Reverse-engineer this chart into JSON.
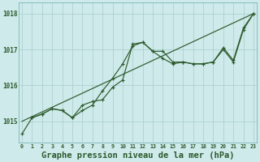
{
  "background_color": "#ceeaea",
  "grid_color": "#a8cccc",
  "line_color": "#2d5a2d",
  "xlabel": "Graphe pression niveau de la mer (hPa)",
  "xlabel_fontsize": 7.5,
  "ylim": [
    1014.4,
    1018.3
  ],
  "xlim": [
    -0.3,
    23.3
  ],
  "series1_x": [
    0,
    1,
    2,
    3,
    4,
    5,
    6,
    7,
    8,
    9,
    10,
    11,
    12,
    13,
    14,
    15,
    16,
    17,
    18,
    19,
    20,
    21,
    22,
    23
  ],
  "series1_y": [
    1014.65,
    1015.1,
    1015.2,
    1015.35,
    1015.3,
    1015.1,
    1015.45,
    1015.55,
    1015.6,
    1015.95,
    1016.15,
    1017.15,
    1017.2,
    1016.95,
    1016.75,
    1016.6,
    1016.65,
    1016.6,
    1016.6,
    1016.65,
    1017.0,
    1016.65,
    1017.55,
    1018.0
  ],
  "series2_x": [
    1,
    2,
    3,
    4,
    5,
    6,
    7,
    8,
    9,
    10,
    11,
    12,
    13,
    14,
    15,
    16,
    17,
    18,
    19,
    20,
    21,
    22,
    23
  ],
  "series2_y": [
    1015.1,
    1015.2,
    1015.35,
    1015.3,
    1015.1,
    1015.3,
    1015.45,
    1015.85,
    1016.2,
    1016.6,
    1017.1,
    1017.2,
    1016.95,
    1016.95,
    1016.65,
    1016.65,
    1016.6,
    1016.6,
    1016.65,
    1017.05,
    1016.7,
    1017.6,
    1018.0
  ],
  "series3_x": [
    0,
    23
  ],
  "series3_y": [
    1015.0,
    1018.0
  ],
  "xtick_labels": [
    "0",
    "1",
    "2",
    "3",
    "4",
    "5",
    "6",
    "7",
    "8",
    "9",
    "10",
    "11",
    "12",
    "13",
    "14",
    "15",
    "16",
    "17",
    "18",
    "19",
    "20",
    "21",
    "22",
    "23"
  ],
  "ytick_labels": [
    "1015",
    "1016",
    "1017",
    "1018"
  ],
  "ytick_vals": [
    1015,
    1016,
    1017,
    1018
  ]
}
